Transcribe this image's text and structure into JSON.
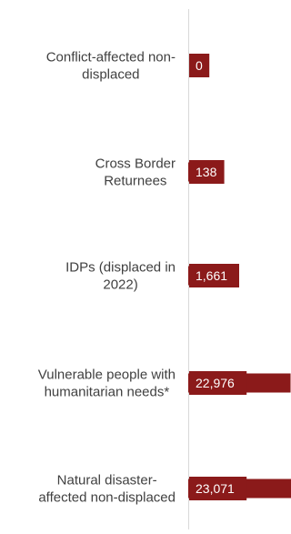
{
  "chart_data": {
    "type": "bar",
    "orientation": "horizontal",
    "categories": [
      "Conflict-affected non-displaced",
      "Cross Border Returnees",
      "IDPs (displaced in 2022)",
      "Vulnerable people with humanitarian needs*",
      "Natural disaster-affected non-displaced"
    ],
    "category_lines": [
      [
        "Conflict-affected non-",
        "displaced"
      ],
      [
        "Cross Border",
        "Returnees"
      ],
      [
        "IDPs (displaced in",
        "2022)"
      ],
      [
        "Vulnerable people with",
        "humanitarian needs*"
      ],
      [
        "Natural disaster-",
        "affected non-displaced"
      ]
    ],
    "values": [
      0,
      138,
      1661,
      22976,
      23071
    ],
    "value_labels": [
      "0",
      "138",
      "1,661",
      "22,976",
      "23,071"
    ],
    "bar_color": "#8b1a1a",
    "label_box_color": "#8b1a1a",
    "value_label_color": "#ffffff",
    "axis_line_color": "#d9d9d9",
    "grid": false,
    "legend": "none"
  }
}
